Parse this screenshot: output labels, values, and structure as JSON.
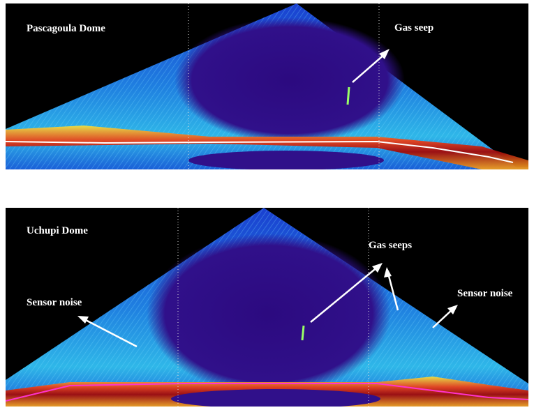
{
  "panels": [
    {
      "title": "Pascagoula Dome",
      "annotations": [
        "Gas seep"
      ]
    },
    {
      "title": "Uchupi Dome",
      "annotations": [
        "Gas seeps",
        "Sensor noise",
        "Sensor noise"
      ]
    }
  ]
}
